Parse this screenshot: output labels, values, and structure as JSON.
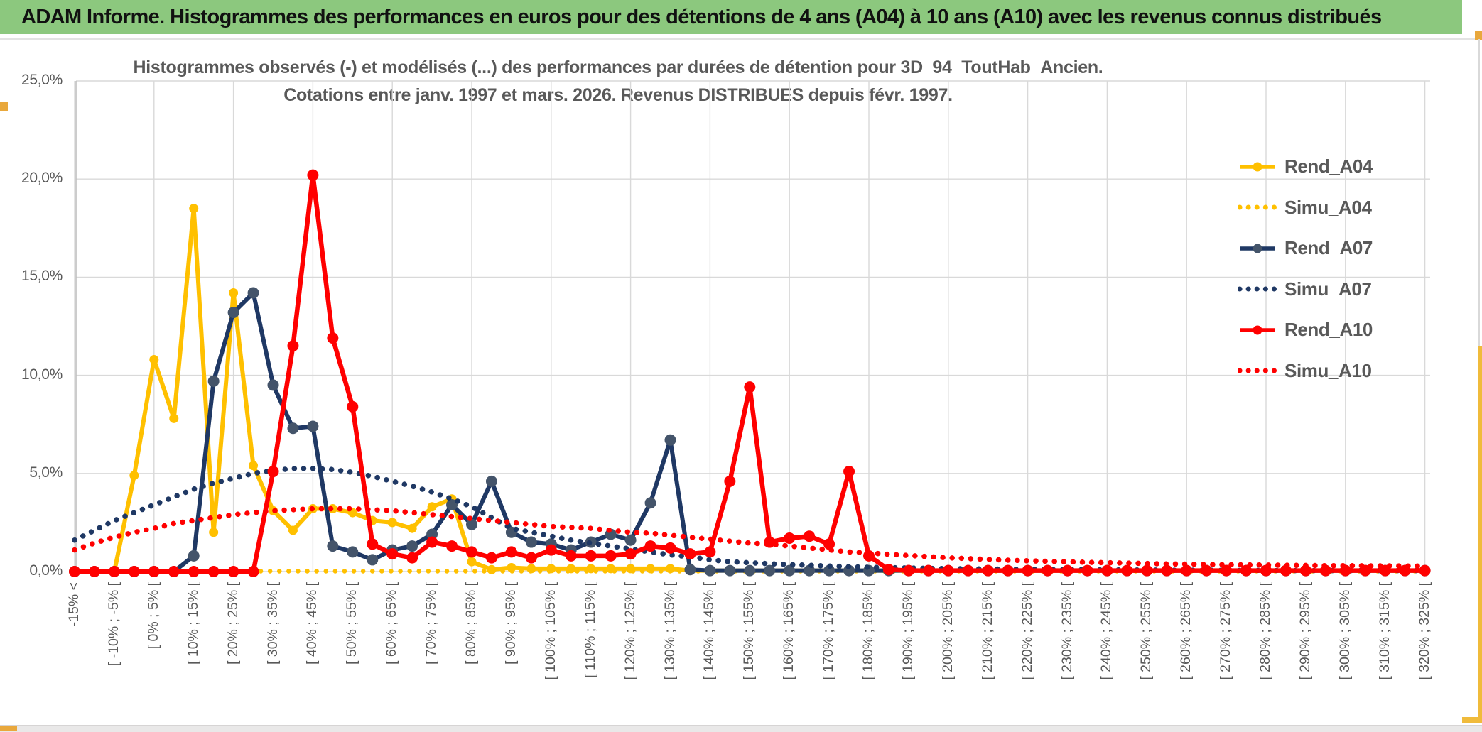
{
  "window": {
    "title": "ADAM Informe. Histogrammes des performances en euros pour des détentions de 4 ans (A04) à 10 ans (A10) avec les revenus connus distribués"
  },
  "colors": {
    "title_bar_green": "#8cc87e",
    "accent_gold": "#e9a83c",
    "frame_gold": "#f0bb3b",
    "gridline": "#d9d9d9",
    "axis_line": "#bfbfbf",
    "axis_text": "#595959",
    "title_text": "#595959",
    "gold": "#ffc000",
    "navy": "#1f3864",
    "navy_marker": "#44546a",
    "red": "#ff0000"
  },
  "chart_data": {
    "type": "line",
    "title": "Histogrammes observés (-) et modélisés (...) des performances par durées de détention pour 3D_94_ToutHab_Ancien. Cotations entre janv. 1997 et mars. 2026. Revenus DISTRIBUES depuis févr. 1997.",
    "title_line1": "Histogrammes observés (-) et modélisés (...) des performances par durées de détention pour 3D_94_ToutHab_Ancien.",
    "title_line2": "Cotations entre janv. 1997 et mars. 2026. Revenus DISTRIBUES depuis févr. 1997.",
    "xlabel": "",
    "ylabel": "",
    "legend_position": "right",
    "grid": true,
    "y_axis": {
      "min": 0,
      "max": 25,
      "tick_values": [
        25,
        20,
        15,
        10,
        5,
        0
      ],
      "tick_labels": [
        "25,0%",
        "20,0%",
        "15,0%",
        "10,0%",
        "5,0%",
        "0,0%"
      ],
      "unit": "percent"
    },
    "x_axis": {
      "bins_total": 69,
      "bin_width_percent": 5,
      "labels_shown_every_other_bin": true,
      "labels": [
        "-15% <",
        "[ -10% ; -5% [",
        "[ 0% ; 5% [",
        "[ 10% ; 15% [",
        "[ 20% ; 25% [",
        "[ 30% ; 35% [",
        "[ 40% ; 45% [",
        "[ 50% ; 55% [",
        "[ 60% ; 65% [",
        "[ 70% ; 75% [",
        "[ 80% ; 85% [",
        "[ 90% ; 95% [",
        "[ 100% ; 105% [",
        "[ 110% ; 115% [",
        "[ 120% ; 125% [",
        "[ 130% ; 135% [",
        "[ 140% ; 145% [",
        "[ 150% ; 155% [",
        "[ 160% ; 165% [",
        "[ 170% ; 175% [",
        "[ 180% ; 185% [",
        "[ 190% ; 195% [",
        "[ 200% ; 205% [",
        "[ 210% ; 215% [",
        "[ 220% ; 225% [",
        "[ 230% ; 235% [",
        "[ 240% ; 245% [",
        "[ 250% ; 255% [",
        "[ 260% ; 265% [",
        "[ 270% ; 275% [",
        "[ 280% ; 285% [",
        "[ 290% ; 295% [",
        "[ 300% ; 305% [",
        "[ 310% ; 315% [",
        "[ 320% ; 325% ["
      ]
    },
    "series": [
      {
        "name": "Rend_A04",
        "style": "solid",
        "color": "#ffc000",
        "marker_color": "#ffc000",
        "marker_r": 6.5,
        "line_width": 6,
        "values": [
          0,
          0,
          0,
          4.9,
          10.8,
          7.8,
          18.5,
          2,
          14.2,
          5.4,
          3.1,
          2.1,
          3.2,
          3.2,
          3,
          2.6,
          2.5,
          2.2,
          3.3,
          3.7,
          0.5,
          0.1,
          0.2,
          0.15,
          0.15,
          0.15,
          0.15,
          0.15,
          0.15,
          0.15,
          0.15,
          0.05,
          0.05,
          0.05,
          0.05,
          0.05,
          0.05,
          0.05,
          0.05,
          0.05,
          0.05,
          0.05,
          0.05,
          0.05,
          0.05,
          0.05,
          0.05,
          0.05,
          0.05,
          0.05,
          0.05,
          0.05,
          0.05,
          0.05,
          0.05,
          0.05,
          0.05,
          0.05,
          0.05,
          0.05,
          0.05,
          0.05,
          0.05,
          0.05,
          0.05,
          0.05,
          0.05,
          0.05,
          0.05
        ]
      },
      {
        "name": "Simu_A04",
        "style": "dotted",
        "color": "#ffc000",
        "line_width": 6.5,
        "values": [
          0.02,
          0.02,
          0.02,
          0.02,
          0.02,
          0.02,
          0.02,
          0.02,
          0.02,
          0.02,
          0.02,
          0.02,
          0.02,
          0.02,
          0.02,
          0.02,
          0.02,
          0.02,
          0.02,
          0.02,
          0.02,
          0.02,
          0.02,
          0.02,
          0.02,
          0.02,
          0.02,
          0.02,
          0.02,
          0.02,
          0.02,
          0.02,
          0.02,
          0.02,
          0.02,
          0.02,
          0.02,
          0.02,
          0.02,
          0.02,
          0.02,
          0.02,
          0.02,
          0.02,
          0.02,
          0.02,
          0.02,
          0.02,
          0.02,
          0.02,
          0.02,
          0.02,
          0.02,
          0.02,
          0.02,
          0.02,
          0.02,
          0.02,
          0.02,
          0.02,
          0.02,
          0.02,
          0.02,
          0.02,
          0.02,
          0.02,
          0.02,
          0.02,
          0.02
        ]
      },
      {
        "name": "Rend_A07",
        "style": "solid",
        "color": "#1f3864",
        "marker_color": "#44546a",
        "marker_r": 8,
        "line_width": 6,
        "values": [
          0,
          0,
          0,
          0,
          0,
          0,
          0.8,
          9.7,
          13.2,
          14.2,
          9.5,
          7.3,
          7.4,
          1.3,
          1,
          0.6,
          1.1,
          1.3,
          1.9,
          3.4,
          2.4,
          4.6,
          2,
          1.5,
          1.4,
          1.1,
          1.5,
          1.9,
          1.6,
          3.5,
          6.7,
          0.1,
          0.05,
          0.05,
          0.05,
          0.05,
          0.05,
          0.05,
          0.05,
          0.05,
          0.05,
          0.05,
          0.05,
          0.05,
          0.05,
          0.05,
          0.05,
          0.05,
          0.05,
          0.05,
          0.05,
          0.05,
          0.05,
          0.05,
          0.05,
          0.05,
          0.05,
          0.05,
          0.05,
          0.05,
          0.05,
          0.05,
          0.05,
          0.05,
          0.05,
          0.05,
          0.05,
          0.05,
          0.05
        ]
      },
      {
        "name": "Simu_A07",
        "style": "dotted",
        "color": "#1f3864",
        "line_width": 7.5,
        "values": [
          1.6,
          2.1,
          2.6,
          3,
          3.4,
          3.8,
          4.2,
          4.5,
          4.75,
          5,
          5.15,
          5.25,
          5.25,
          5.2,
          5.05,
          4.85,
          4.6,
          4.35,
          4.05,
          3.7,
          3.3,
          2.75,
          2.2,
          2,
          1.8,
          1.6,
          1.45,
          1.3,
          1.15,
          1,
          0.85,
          0.75,
          0.6,
          0.5,
          0.45,
          0.4,
          0.36,
          0.32,
          0.28,
          0.25,
          0.22,
          0.2,
          0.18,
          0.16,
          0.15,
          0.14,
          0.13,
          0.12,
          0.11,
          0.1,
          0.1,
          0.09,
          0.09,
          0.08,
          0.08,
          0.07,
          0.07,
          0.07,
          0.06,
          0.06,
          0.06,
          0.05,
          0.05,
          0.05,
          0.05,
          0.05,
          0.05,
          0.05,
          0.05
        ]
      },
      {
        "name": "Rend_A10",
        "style": "solid",
        "color": "#ff0000",
        "marker_color": "#ff0000",
        "marker_r": 8,
        "line_width": 6.5,
        "values": [
          0,
          0,
          0,
          0,
          0,
          0,
          0,
          0,
          0,
          0,
          5.1,
          11.5,
          20.2,
          11.9,
          8.4,
          1.4,
          0.9,
          0.7,
          1.5,
          1.3,
          1,
          0.7,
          1,
          0.7,
          1.1,
          0.8,
          0.8,
          0.8,
          0.9,
          1.3,
          1.2,
          0.9,
          1,
          4.6,
          9.4,
          1.5,
          1.7,
          1.8,
          1.4,
          5.1,
          0.8,
          0.1,
          0.05,
          0.05,
          0.05,
          0.05,
          0.05,
          0.05,
          0.05,
          0.05,
          0.05,
          0.05,
          0.05,
          0.05,
          0.05,
          0.05,
          0.05,
          0.05,
          0.05,
          0.05,
          0.05,
          0.05,
          0.05,
          0.05,
          0.05,
          0.05,
          0.05,
          0.05,
          0.05
        ]
      },
      {
        "name": "Simu_A10",
        "style": "dotted",
        "color": "#ff0000",
        "line_width": 7.5,
        "values": [
          1.1,
          1.45,
          1.75,
          2,
          2.2,
          2.45,
          2.6,
          2.75,
          2.9,
          3,
          3.1,
          3.15,
          3.2,
          3.2,
          3.2,
          3.15,
          3.1,
          3,
          2.9,
          2.8,
          2.7,
          2.6,
          2.5,
          2.4,
          2.3,
          2.25,
          2.2,
          2.1,
          2,
          1.95,
          1.85,
          1.75,
          1.65,
          1.55,
          1.45,
          1.4,
          1.3,
          1.2,
          1.1,
          1,
          0.95,
          0.88,
          0.82,
          0.76,
          0.7,
          0.66,
          0.62,
          0.58,
          0.55,
          0.52,
          0.5,
          0.47,
          0.45,
          0.43,
          0.41,
          0.39,
          0.38,
          0.36,
          0.35,
          0.34,
          0.33,
          0.32,
          0.31,
          0.3,
          0.3,
          0.29,
          0.29,
          0.28,
          0.28
        ]
      }
    ]
  }
}
